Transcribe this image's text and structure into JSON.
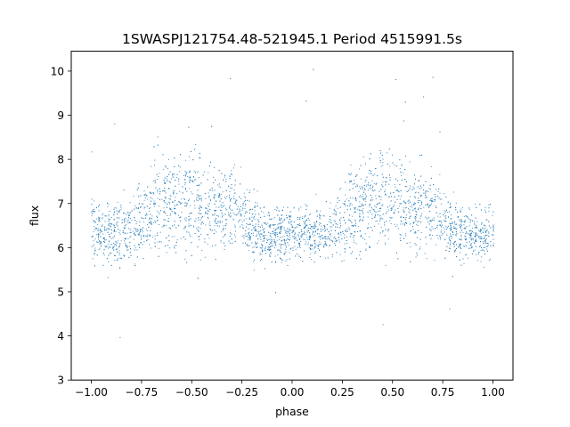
{
  "chart_data": {
    "type": "scatter",
    "title": "1SWASPJ121754.48-521945.1 Period 4515991.5s",
    "xlabel": "phase",
    "ylabel": "flux",
    "xlim": [
      -1.1,
      1.1
    ],
    "ylim": [
      3.0,
      10.45
    ],
    "xticks": [
      -1.0,
      -0.75,
      -0.5,
      -0.25,
      0.0,
      0.25,
      0.5,
      0.75,
      1.0
    ],
    "xtick_labels": [
      "−1.00",
      "−0.75",
      "−0.50",
      "−0.25",
      "0.00",
      "0.25",
      "0.50",
      "0.75",
      "1.00"
    ],
    "yticks": [
      3,
      4,
      5,
      6,
      7,
      8,
      9,
      10
    ],
    "ytick_labels": [
      "3",
      "4",
      "5",
      "6",
      "7",
      "8",
      "9",
      "10"
    ],
    "grid": false,
    "legend": "none",
    "marker_color": "#1f77b4",
    "series": [
      {
        "description_phase_flux_profile": "phase-folded light curve repeated over two cycles; x = phase, y = typical flux center and scatter spread",
        "x": [
          -1.0,
          -0.9,
          -0.8,
          -0.7,
          -0.6,
          -0.5,
          -0.4,
          -0.3,
          -0.2,
          -0.1,
          0.0,
          0.1,
          0.2,
          0.3,
          0.4,
          0.5,
          0.6,
          0.7,
          0.8,
          0.9,
          1.0
        ],
        "y_center": [
          6.4,
          6.3,
          6.4,
          6.9,
          7.0,
          7.1,
          6.8,
          6.9,
          6.4,
          6.3,
          6.3,
          6.3,
          6.4,
          6.9,
          7.0,
          7.1,
          6.8,
          6.9,
          6.4,
          6.3,
          6.4
        ],
        "y_spread": [
          0.55,
          0.6,
          0.7,
          0.9,
          1.0,
          1.1,
          0.8,
          0.8,
          0.6,
          0.55,
          0.55,
          0.55,
          0.6,
          0.9,
          1.0,
          1.1,
          0.8,
          0.8,
          0.6,
          0.55,
          0.55
        ]
      }
    ]
  }
}
